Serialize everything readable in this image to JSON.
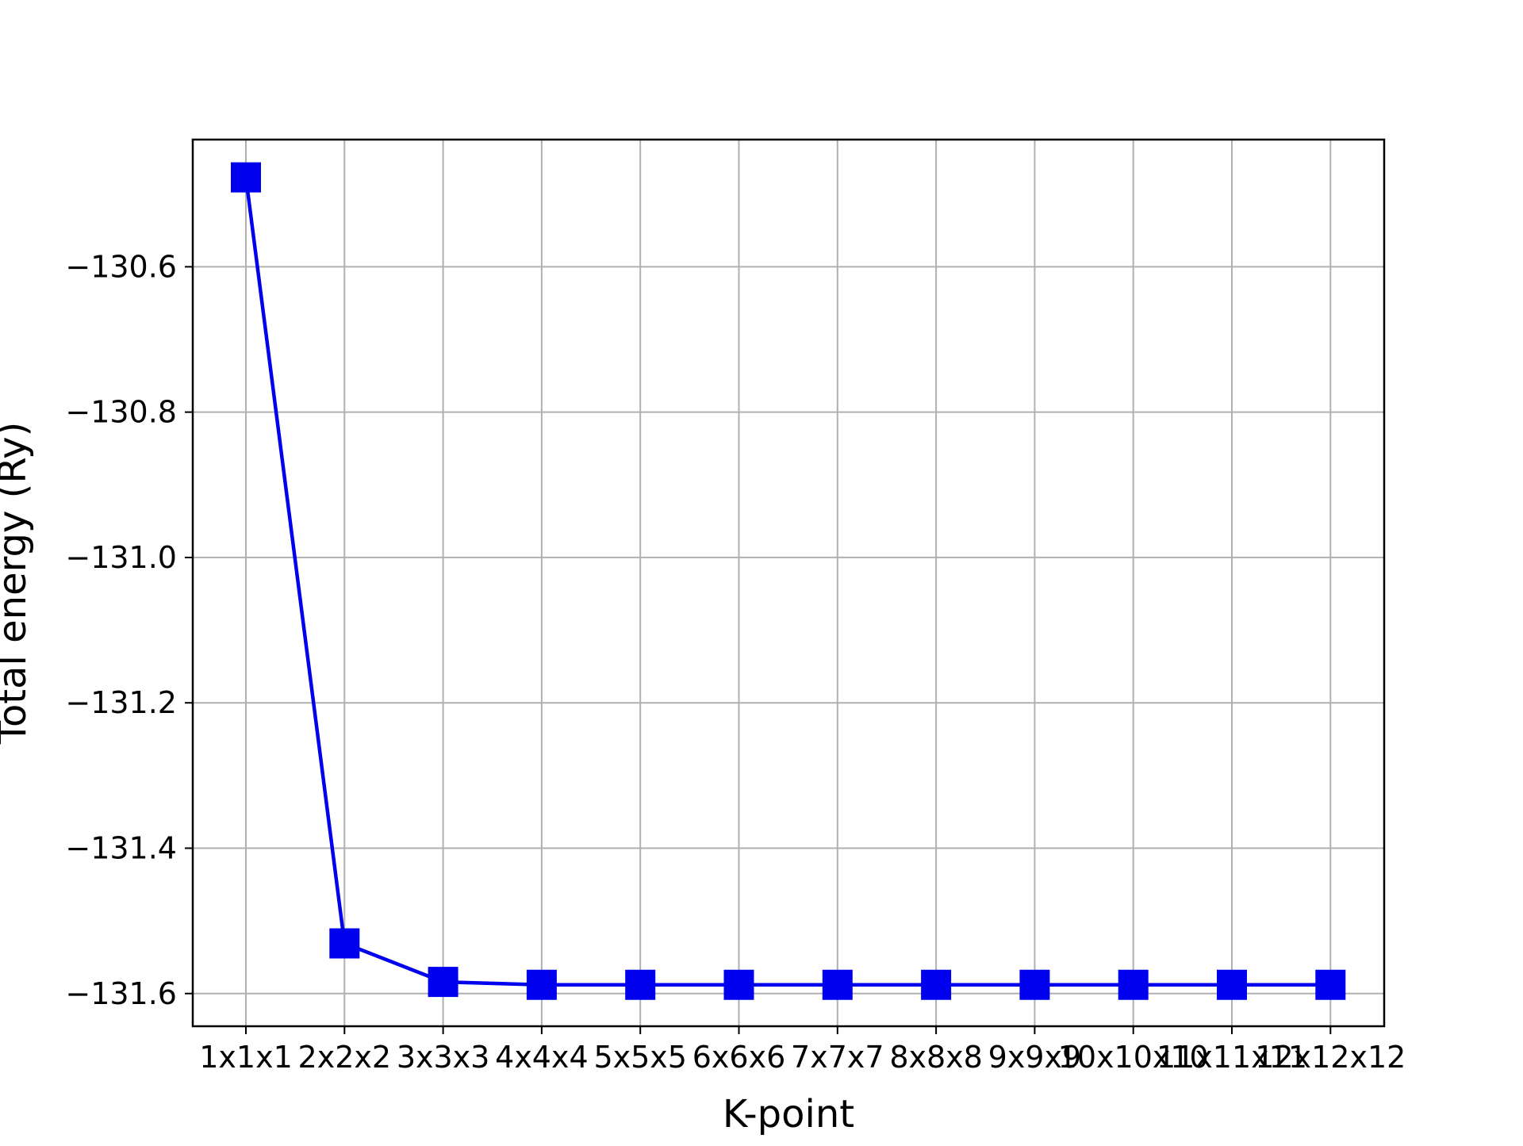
{
  "chart_data": {
    "type": "line",
    "title": "",
    "xlabel": "K-point",
    "ylabel": "Total energy (Ry)",
    "categories": [
      "1x1x1",
      "2x2x2",
      "3x3x3",
      "4x4x4",
      "5x5x5",
      "6x6x6",
      "7x7x7",
      "8x8x8",
      "9x9x9",
      "10x10x10",
      "11x11x11",
      "12x12x12"
    ],
    "series": [
      {
        "values": [
          -130.477,
          -131.531,
          -131.584,
          -131.588,
          -131.588,
          -131.588,
          -131.588,
          -131.588,
          -131.588,
          -131.588,
          -131.588,
          -131.588
        ],
        "color": "#0000ee",
        "marker": "square"
      }
    ],
    "ylim": [
      -131.645,
      -130.425
    ],
    "yticks": [
      -131.6,
      -131.4,
      -131.2,
      -131.0,
      -130.8,
      -130.6
    ],
    "ytick_labels": [
      "−131.6",
      "−131.4",
      "−131.2",
      "−131.0",
      "−130.8",
      "−130.6"
    ],
    "grid": true,
    "grid_color": "#b0b0b0",
    "legend": "none"
  }
}
